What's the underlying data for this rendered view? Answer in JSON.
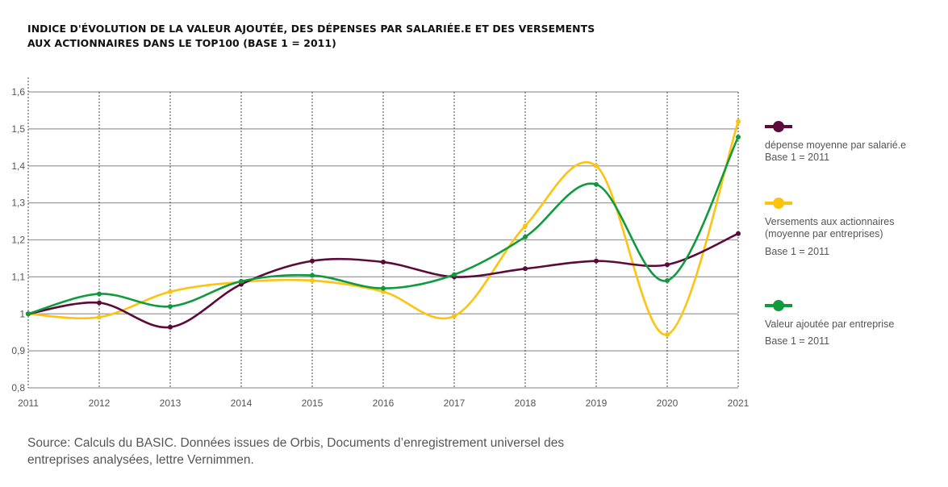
{
  "title": {
    "line1": "Indice d'évolution de la valeur ajoutée, des dépenses par salariée.e et des versements",
    "line2": "aux actionnaires dans le TOP100 (base 1 = 2011)"
  },
  "legend": [
    {
      "label": "dépense moyenne par salarié.e",
      "label2": "",
      "base": "Base 1 = 2011",
      "color": "#5c0a3a"
    },
    {
      "label": "Versements aux actionnaires",
      "label2": "(moyenne par entreprises)",
      "base": "Base 1 = 2011",
      "color": "#ffc20e"
    },
    {
      "label": "Valeur ajoutée par entreprise",
      "label2": "",
      "base": "Base 1 = 2011",
      "color": "#109a3e"
    }
  ],
  "source": {
    "line1": "Source: Calculs du BASIC. Données issues de Orbis, Documents d’enregistrement universel des",
    "line2": "entreprises analysées, lettre Vernimmen."
  },
  "chart_data": {
    "type": "line",
    "title": "Indice d'évolution de la valeur ajoutée, des dépenses par salariée.e et des versements aux actionnaires dans le TOP100 (base 1 = 2011)",
    "xlabel": "",
    "ylabel": "",
    "x": [
      "2011",
      "2012",
      "2013",
      "2014",
      "2015",
      "2016",
      "2017",
      "2018",
      "2019",
      "2020",
      "2021"
    ],
    "ylim": [
      0.8,
      1.6
    ],
    "yticks": [
      0.8,
      0.9,
      1.0,
      1.1,
      1.2,
      1.3,
      1.4,
      1.5,
      1.6
    ],
    "ytick_labels": [
      "0,8",
      "0,9",
      "1",
      "1,1",
      "1,2",
      "1,3",
      "1,4",
      "1,5",
      "1,6"
    ],
    "grid": "horizontal solid, vertical dotted",
    "legend_position": "right",
    "series": [
      {
        "name": "dépense moyenne par salarié.e (Base 1 = 2011)",
        "color": "#5c0a3a",
        "values": [
          1.0,
          1.03,
          0.964,
          1.08,
          1.143,
          1.14,
          1.1,
          1.122,
          1.143,
          1.133,
          1.217
        ]
      },
      {
        "name": "Versements aux actionnaires (moyenne par entreprises) (Base 1 = 2011)",
        "color": "#ffc20e",
        "values": [
          1.0,
          0.991,
          1.06,
          1.086,
          1.09,
          1.06,
          0.994,
          1.238,
          1.4,
          0.944,
          1.52
        ]
      },
      {
        "name": "Valeur ajoutée par entreprise (Base 1 = 2011)",
        "color": "#109a3e",
        "values": [
          1.0,
          1.054,
          1.02,
          1.088,
          1.104,
          1.069,
          1.106,
          1.208,
          1.35,
          1.09,
          1.478
        ]
      }
    ]
  }
}
